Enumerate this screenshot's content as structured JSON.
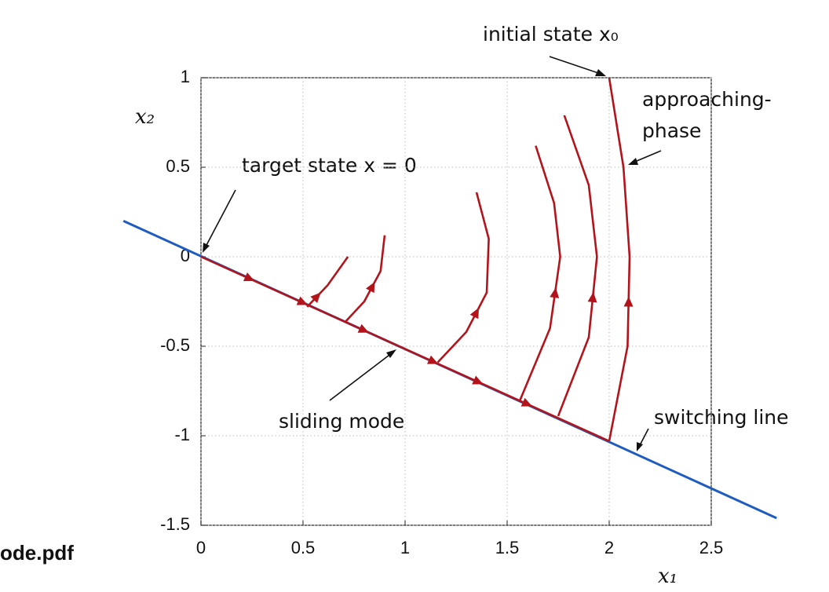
{
  "chart_data": {
    "type": "line",
    "x_label": "x₁",
    "y_label": "x₂",
    "annotations": [
      "initial state x₀",
      "approaching-",
      "phase",
      "target state x = 0",
      "sliding mode",
      "switching line"
    ],
    "file_label": "ode.pdf",
    "xlim": [
      0,
      2.5
    ],
    "ylim": [
      -1.5,
      1
    ],
    "xticks": [
      0,
      0.5,
      1,
      1.5,
      2,
      2.5
    ],
    "yticks": [
      -1.5,
      -1,
      -0.5,
      0,
      0.5,
      1
    ],
    "grid": true,
    "series": [
      {
        "color": "#1f5cbf",
        "x": [
          -0.38,
          2.82
        ],
        "values": [
          0.2,
          -1.46
        ]
      },
      {
        "color": "#b3141c",
        "x": [
          2.0,
          0
        ],
        "values": [
          -1.03,
          0
        ]
      },
      {
        "color": "#b3141c",
        "x": [
          2.0,
          2.07,
          2.1,
          2.09,
          2.0
        ],
        "values": [
          1.0,
          0.5,
          0,
          -0.5,
          -1.03
        ]
      },
      {
        "color": "#b3141c",
        "x": [
          1.78,
          1.9,
          1.94,
          1.9,
          1.75
        ],
        "values": [
          0.79,
          0.4,
          0,
          -0.45,
          -0.89
        ]
      },
      {
        "color": "#b3141c",
        "x": [
          1.64,
          1.73,
          1.76,
          1.71,
          1.56
        ],
        "values": [
          0.62,
          0.3,
          0,
          -0.4,
          -0.81
        ]
      },
      {
        "color": "#b3141c",
        "x": [
          1.35,
          1.41,
          1.4,
          1.3,
          1.16
        ],
        "values": [
          0.36,
          0.1,
          -0.2,
          -0.42,
          -0.59
        ]
      },
      {
        "color": "#b3141c",
        "x": [
          0.9,
          0.88,
          0.8,
          0.71
        ],
        "values": [
          0.12,
          -0.08,
          -0.25,
          -0.36
        ]
      },
      {
        "color": "#b3141c",
        "x": [
          0.72,
          0.62,
          0.52
        ],
        "values": [
          0,
          -0.16,
          -0.28
        ]
      }
    ]
  }
}
